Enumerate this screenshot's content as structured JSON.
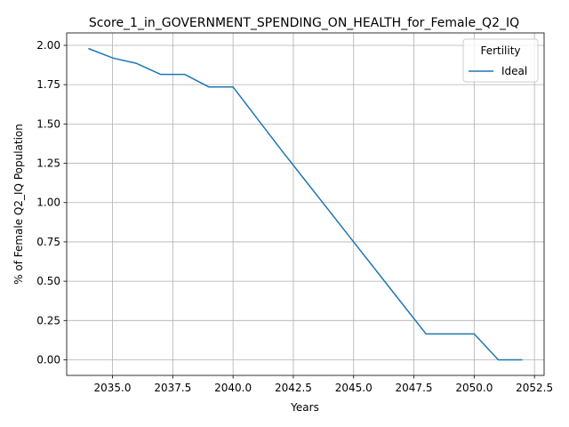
{
  "chart_data": {
    "type": "line",
    "title": "Score_1_in_GOVERNMENT_SPENDING_ON_HEALTH_for_Female_Q2_IQ",
    "xlabel": "Years",
    "ylabel": "% of Female Q2_IQ Population",
    "xlim": [
      2033.1,
      2052.9
    ],
    "ylim": [
      -0.099,
      2.079
    ],
    "xticks": [
      2035.0,
      2037.5,
      2040.0,
      2042.5,
      2045.0,
      2047.5,
      2050.0,
      2052.5
    ],
    "xtick_labels": [
      "2035.0",
      "2037.5",
      "2040.0",
      "2042.5",
      "2045.0",
      "2047.5",
      "2050.0",
      "2052.5"
    ],
    "yticks": [
      0.0,
      0.25,
      0.5,
      0.75,
      1.0,
      1.25,
      1.5,
      1.75,
      2.0
    ],
    "ytick_labels": [
      "0.00",
      "0.25",
      "0.50",
      "0.75",
      "1.00",
      "1.25",
      "1.50",
      "1.75",
      "2.00"
    ],
    "grid": true,
    "legend": {
      "title": "Fertility",
      "placement": "top-right"
    },
    "series": [
      {
        "name": "Ideal",
        "color": "#1f77b4",
        "x": [
          2034,
          2035,
          2036,
          2037,
          2038,
          2039,
          2040,
          2041,
          2042,
          2043,
          2044,
          2045,
          2046,
          2047,
          2048,
          2049,
          2050,
          2051,
          2052
        ],
        "y": [
          1.98,
          1.92,
          1.885,
          1.815,
          1.815,
          1.735,
          1.735,
          1.535,
          1.335,
          1.14,
          0.945,
          0.75,
          0.555,
          0.36,
          0.165,
          0.165,
          0.165,
          0.0,
          0.0
        ]
      }
    ]
  }
}
